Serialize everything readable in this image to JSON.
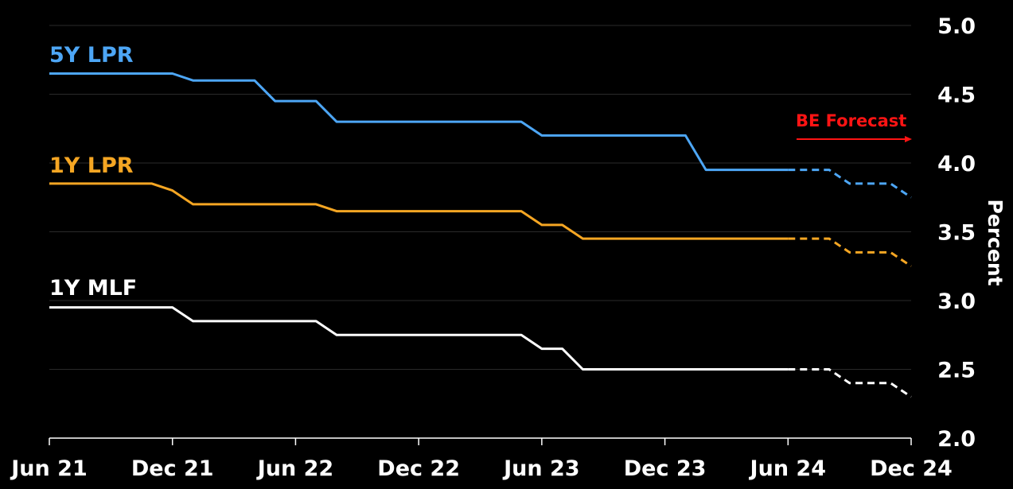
{
  "chart_data": {
    "type": "line",
    "title": "",
    "xlabel": "",
    "ylabel": "Percent",
    "ylim": [
      2.0,
      5.0
    ],
    "yticks": [
      "2.0",
      "2.5",
      "3.0",
      "3.5",
      "4.0",
      "4.5",
      "5.0"
    ],
    "xlim": [
      "2021-06",
      "2024-12"
    ],
    "xticks": [
      "Jun 21",
      "Dec 21",
      "Jun 22",
      "Dec 22",
      "Jun 23",
      "Dec 23",
      "Jun 24",
      "Dec 24"
    ],
    "grid": true,
    "forecast_label": "BE Forecast",
    "forecast_start": "2024-06",
    "series": [
      {
        "name": "5Y LPR",
        "color": "#4da6f5",
        "points": [
          [
            "2021-06",
            4.65
          ],
          [
            "2021-12",
            4.65
          ],
          [
            "2022-01",
            4.6
          ],
          [
            "2022-04",
            4.6
          ],
          [
            "2022-05",
            4.45
          ],
          [
            "2022-07",
            4.45
          ],
          [
            "2022-08",
            4.3
          ],
          [
            "2023-05",
            4.3
          ],
          [
            "2023-06",
            4.2
          ],
          [
            "2024-01",
            4.2
          ],
          [
            "2024-02",
            3.95
          ],
          [
            "2024-06",
            3.95
          ]
        ],
        "forecast": [
          [
            "2024-06",
            3.95
          ],
          [
            "2024-08",
            3.95
          ],
          [
            "2024-09",
            3.85
          ],
          [
            "2024-11",
            3.85
          ],
          [
            "2024-12",
            3.75
          ]
        ]
      },
      {
        "name": "1Y LPR",
        "color": "#f5a623",
        "points": [
          [
            "2021-06",
            3.85
          ],
          [
            "2021-11",
            3.85
          ],
          [
            "2021-12",
            3.8
          ],
          [
            "2022-01",
            3.7
          ],
          [
            "2022-07",
            3.7
          ],
          [
            "2022-08",
            3.65
          ],
          [
            "2023-05",
            3.65
          ],
          [
            "2023-06",
            3.55
          ],
          [
            "2023-07",
            3.55
          ],
          [
            "2023-08",
            3.45
          ],
          [
            "2024-06",
            3.45
          ]
        ],
        "forecast": [
          [
            "2024-06",
            3.45
          ],
          [
            "2024-08",
            3.45
          ],
          [
            "2024-09",
            3.35
          ],
          [
            "2024-11",
            3.35
          ],
          [
            "2024-12",
            3.25
          ]
        ]
      },
      {
        "name": "1Y MLF",
        "color": "#ffffff",
        "points": [
          [
            "2021-06",
            2.95
          ],
          [
            "2021-12",
            2.95
          ],
          [
            "2022-01",
            2.85
          ],
          [
            "2022-07",
            2.85
          ],
          [
            "2022-08",
            2.75
          ],
          [
            "2023-05",
            2.75
          ],
          [
            "2023-06",
            2.65
          ],
          [
            "2023-07",
            2.65
          ],
          [
            "2023-08",
            2.5
          ],
          [
            "2024-06",
            2.5
          ]
        ],
        "forecast": [
          [
            "2024-06",
            2.5
          ],
          [
            "2024-08",
            2.5
          ],
          [
            "2024-09",
            2.4
          ],
          [
            "2024-11",
            2.4
          ],
          [
            "2024-12",
            2.3
          ]
        ]
      }
    ]
  }
}
